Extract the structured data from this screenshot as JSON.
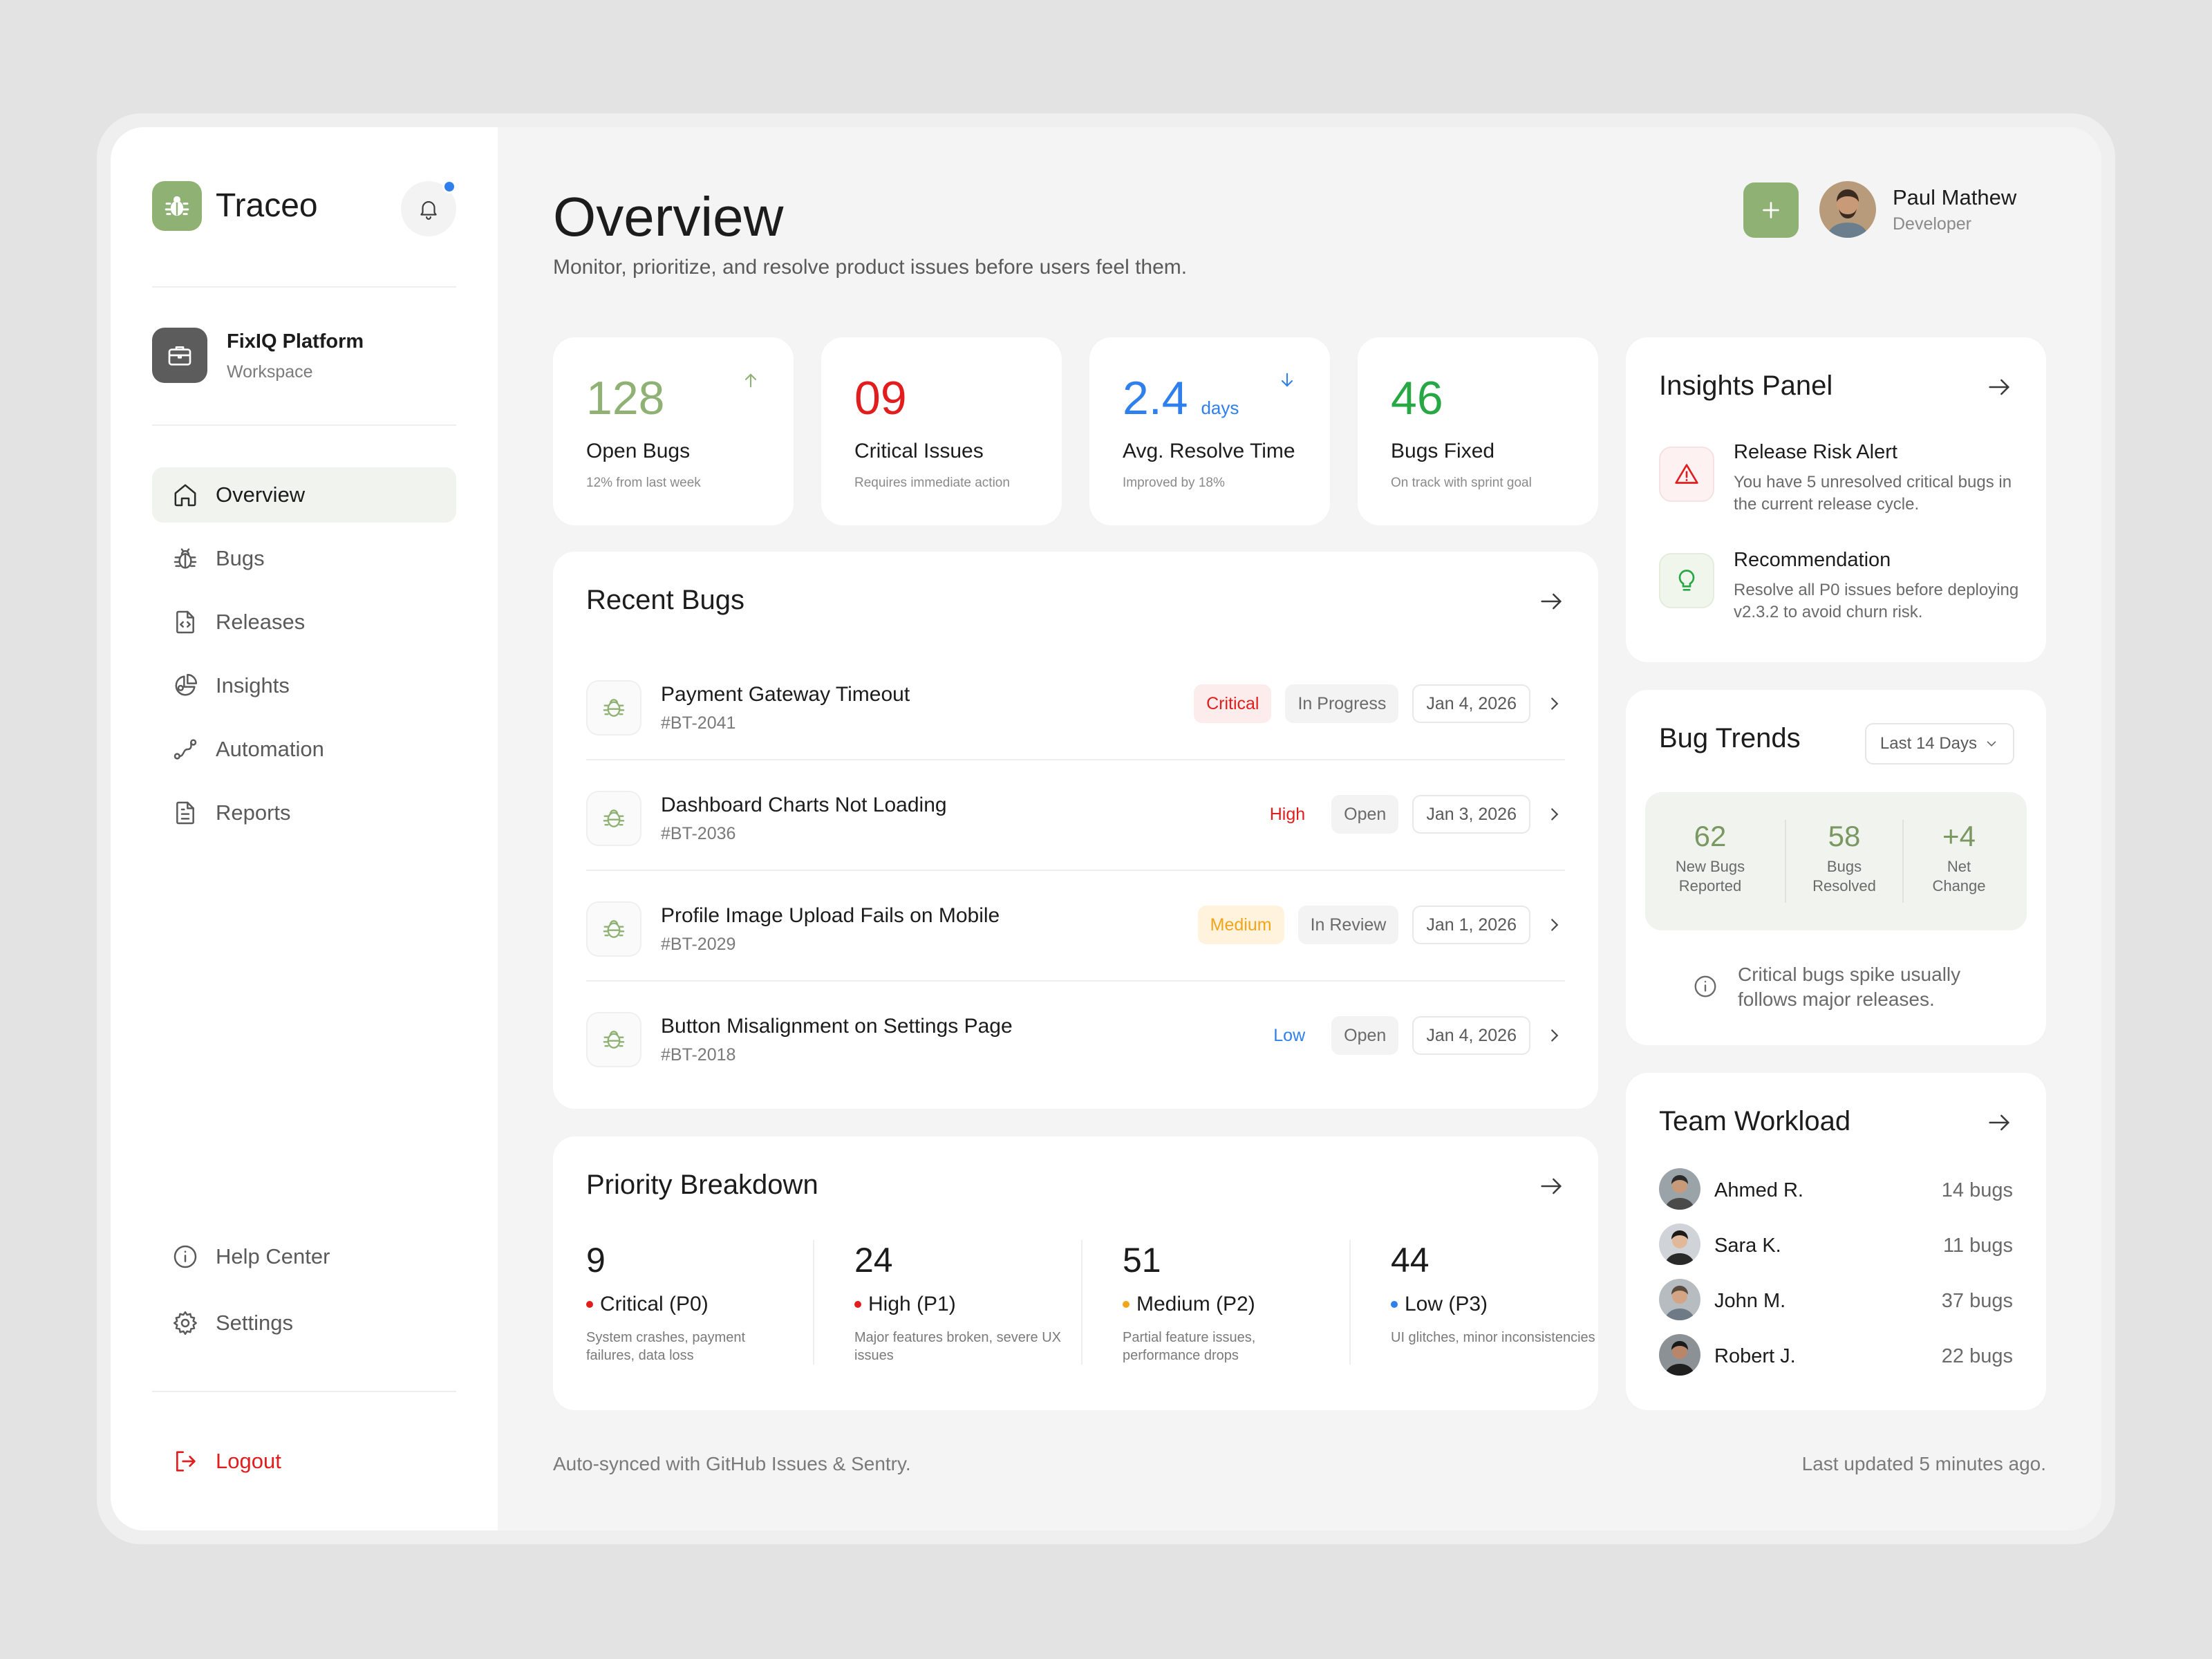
{
  "brand": {
    "name": "Traceo"
  },
  "workspace": {
    "name": "FixIQ Platform",
    "type": "Workspace"
  },
  "nav": {
    "items": [
      {
        "label": "Overview",
        "icon": "home-icon",
        "active": true
      },
      {
        "label": "Bugs",
        "icon": "bug-icon"
      },
      {
        "label": "Releases",
        "icon": "file-code-icon"
      },
      {
        "label": "Insights",
        "icon": "pie-chart-icon"
      },
      {
        "label": "Automation",
        "icon": "route-icon"
      },
      {
        "label": "Reports",
        "icon": "document-icon"
      }
    ],
    "bottom": [
      {
        "label": "Help Center",
        "icon": "info-icon"
      },
      {
        "label": "Settings",
        "icon": "gear-icon"
      }
    ],
    "logout": "Logout"
  },
  "header": {
    "title": "Overview",
    "subtitle": "Monitor, prioritize, and resolve product issues before users feel them."
  },
  "user": {
    "name": "Paul Mathew",
    "role": "Developer"
  },
  "stats": [
    {
      "value": "128",
      "unit": "",
      "label": "Open Bugs",
      "sub": "12% from last week",
      "color": "#8fb174",
      "trend": "up"
    },
    {
      "value": "09",
      "unit": "",
      "label": "Critical Issues",
      "sub": "Requires immediate action",
      "color": "#e11d1d",
      "trend": ""
    },
    {
      "value": "2.4",
      "unit": "days",
      "label": "Avg. Resolve Time",
      "sub": "Improved by 18%",
      "color": "#2f80ed",
      "trend": "down"
    },
    {
      "value": "46",
      "unit": "",
      "label": "Bugs Fixed",
      "sub": "On track with sprint goal",
      "color": "#27a844",
      "trend": ""
    }
  ],
  "recent_bugs": {
    "title": "Recent Bugs",
    "rows": [
      {
        "title": "Payment Gateway Timeout",
        "id": "#BT-2041",
        "priority": "Critical",
        "status": "In Progress",
        "date": "Jan 4, 2026"
      },
      {
        "title": "Dashboard Charts Not Loading",
        "id": "#BT-2036",
        "priority": "High",
        "status": "Open",
        "date": "Jan 3, 2026"
      },
      {
        "title": "Profile Image Upload Fails on Mobile",
        "id": "#BT-2029",
        "priority": "Medium",
        "status": "In Review",
        "date": "Jan 1, 2026"
      },
      {
        "title": "Button Misalignment on Settings Page",
        "id": "#BT-2018",
        "priority": "Low",
        "status": "Open",
        "date": "Jan 4, 2026"
      }
    ]
  },
  "priority": {
    "title": "Priority Breakdown",
    "items": [
      {
        "count": "9",
        "label": "Critical (P0)",
        "desc": "System crashes, payment failures, data loss",
        "color": "#e11d1d"
      },
      {
        "count": "24",
        "label": "High (P1)",
        "desc": "Major features broken, severe UX issues",
        "color": "#e11d1d"
      },
      {
        "count": "51",
        "label": "Medium (P2)",
        "desc": "Partial feature issues, performance drops",
        "color": "#f2a51a"
      },
      {
        "count": "44",
        "label": "Low (P3)",
        "desc": "UI glitches, minor inconsistencies",
        "color": "#2f80ed"
      }
    ]
  },
  "insights": {
    "title": "Insights Panel",
    "items": [
      {
        "title": "Release Risk Alert",
        "text": "You have 5 unresolved critical bugs in the current release cycle.",
        "icon": "warning-icon"
      },
      {
        "title": "Recommendation",
        "text": "Resolve all P0 issues before deploying v2.3.2 to avoid churn risk.",
        "icon": "lightbulb-icon"
      }
    ]
  },
  "trends": {
    "title": "Bug Trends",
    "range": "Last 14 Days",
    "metrics": [
      {
        "value": "62",
        "label_1": "New Bugs",
        "label_2": "Reported"
      },
      {
        "value": "58",
        "label_1": "Bugs",
        "label_2": "Resolved"
      },
      {
        "value": "+4",
        "label_1": "Net",
        "label_2": "Change"
      }
    ],
    "note": "Critical bugs spike usually follows major releases."
  },
  "workload": {
    "title": "Team Workload",
    "members": [
      {
        "name": "Ahmed R.",
        "count": "14 bugs"
      },
      {
        "name": "Sara K.",
        "count": "11 bugs"
      },
      {
        "name": "John M.",
        "count": "37 bugs"
      },
      {
        "name": "Robert J.",
        "count": "22 bugs"
      }
    ]
  },
  "footer": {
    "left": "Auto-synced with GitHub Issues & Sentry.",
    "right": "Last updated 5 minutes ago."
  },
  "colors": {
    "accent": "#8fb174",
    "critical": "#e11d1d",
    "info": "#2f80ed",
    "success": "#27a844",
    "warning": "#f2a51a"
  }
}
